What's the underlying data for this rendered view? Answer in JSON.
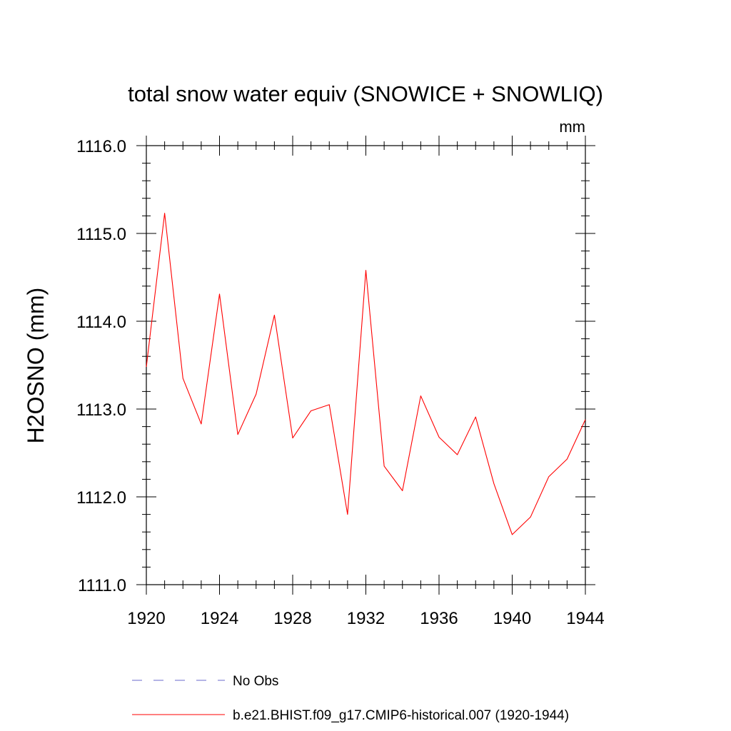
{
  "chart_data": {
    "type": "line",
    "title": "total snow water equiv (SNOWICE + SNOWLIQ)",
    "units": "mm",
    "ylabel": "H2OSNO  (mm)",
    "xlabel": "",
    "xlim": [
      1920,
      1944
    ],
    "ylim": [
      1111.0,
      1116.0
    ],
    "x_major_ticks": [
      1920,
      1924,
      1928,
      1932,
      1936,
      1940,
      1944
    ],
    "x_minor_ticks": [
      1921,
      1922,
      1923,
      1925,
      1926,
      1927,
      1929,
      1930,
      1931,
      1933,
      1934,
      1935,
      1937,
      1938,
      1939,
      1941,
      1942,
      1943
    ],
    "y_major_ticks": [
      1111.0,
      1112.0,
      1113.0,
      1114.0,
      1115.0,
      1116.0
    ],
    "y_tick_labels": [
      "1111.0",
      "1112.0",
      "1113.0",
      "1114.0",
      "1115.0",
      "1116.0"
    ],
    "x_tick_labels": [
      "1920",
      "1924",
      "1928",
      "1932",
      "1936",
      "1940",
      "1944"
    ],
    "y_minor_step": 0.2,
    "grid": false,
    "legend_position": "bottom",
    "legend": [
      {
        "label": "No Obs",
        "color": "#6a6acc",
        "style": "dashed"
      },
      {
        "label": "b.e21.BHIST.f09_g17.CMIP6-historical.007 (1920-1944)",
        "color": "#ff0000",
        "style": "solid"
      }
    ],
    "series": [
      {
        "name": "b.e21.BHIST.f09_g17.CMIP6-historical.007 (1920-1944)",
        "color": "#ff0000",
        "x": [
          1920,
          1921,
          1922,
          1923,
          1924,
          1925,
          1926,
          1927,
          1928,
          1929,
          1930,
          1931,
          1932,
          1933,
          1934,
          1935,
          1936,
          1937,
          1938,
          1939,
          1940,
          1941,
          1942,
          1943,
          1944
        ],
        "y": [
          1113.48,
          1115.23,
          1113.35,
          1112.83,
          1114.31,
          1112.71,
          1113.17,
          1114.07,
          1112.67,
          1112.98,
          1113.05,
          1111.8,
          1114.58,
          1112.35,
          1112.07,
          1113.15,
          1112.68,
          1112.48,
          1112.91,
          1112.15,
          1111.57,
          1111.77,
          1112.23,
          1112.43,
          1112.88
        ]
      }
    ]
  }
}
